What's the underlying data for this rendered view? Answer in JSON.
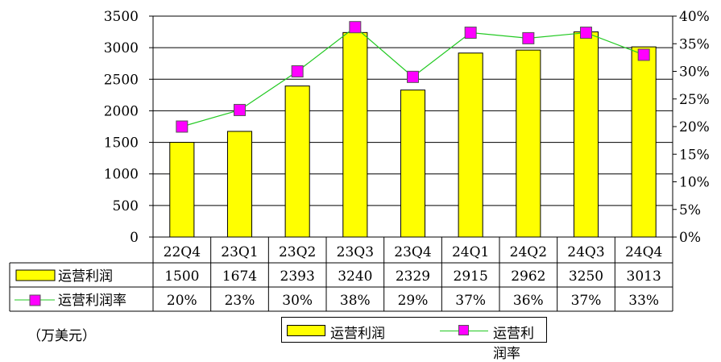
{
  "chart_data": {
    "type": "bar",
    "categories": [
      "22Q4",
      "23Q1",
      "23Q2",
      "23Q3",
      "23Q4",
      "24Q1",
      "24Q2",
      "24Q3",
      "24Q4"
    ],
    "series": [
      {
        "name": "运营利润",
        "kind": "bar",
        "axis": "left",
        "color": "#ffff00",
        "values": [
          1500,
          1674,
          2393,
          3240,
          2329,
          2915,
          2962,
          3250,
          3013
        ]
      },
      {
        "name": "运营利润率",
        "kind": "line",
        "axis": "right",
        "color": "#22c922",
        "marker_color": "#ff00ff",
        "values": [
          20,
          23,
          30,
          38,
          29,
          37,
          36,
          37,
          33
        ]
      }
    ],
    "table_rows": [
      {
        "name": "运营利润",
        "cells": [
          "1500",
          "1674",
          "2393",
          "3240",
          "2329",
          "2915",
          "2962",
          "3250",
          "3013"
        ]
      },
      {
        "name": "运营利润率",
        "cells": [
          "20%",
          "23%",
          "30%",
          "38%",
          "29%",
          "37%",
          "36%",
          "37%",
          "33%"
        ]
      }
    ],
    "y_left": {
      "ylim": [
        0,
        3500
      ],
      "ticks": [
        "0",
        "500",
        "1000",
        "1500",
        "2000",
        "2500",
        "3000",
        "3500"
      ]
    },
    "y_right": {
      "ylim": [
        0,
        40
      ],
      "ticks": [
        "0%",
        "5%",
        "10%",
        "15%",
        "20%",
        "25%",
        "30%",
        "35%",
        "40%"
      ]
    },
    "grid": "horizontal",
    "legend_placement": "bottom",
    "unit_note": "（万美元）"
  }
}
